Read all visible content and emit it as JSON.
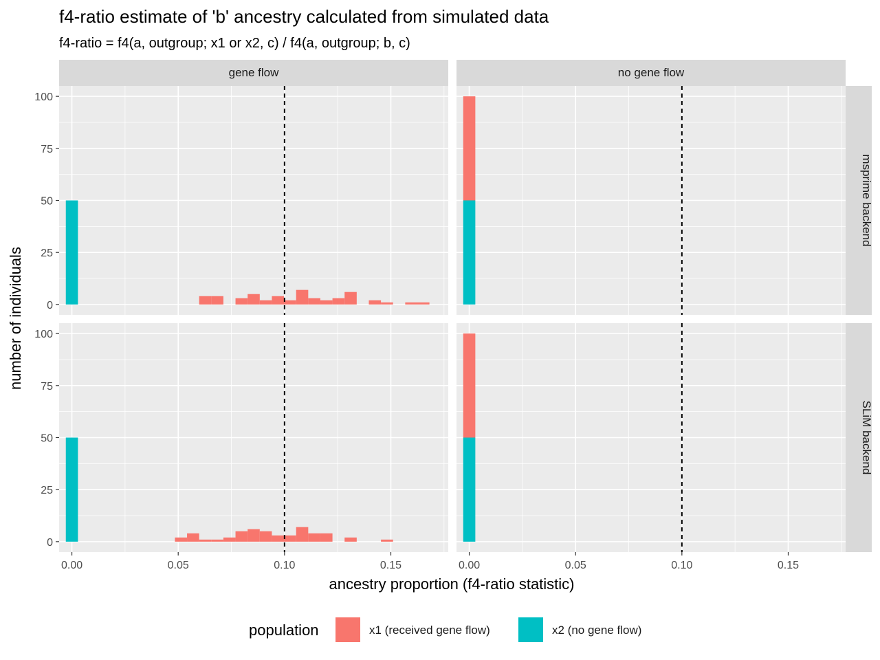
{
  "chart_data": {
    "type": "bar",
    "title": "f4-ratio estimate of 'b' ancestry calculated from simulated data",
    "subtitle": "f4-ratio = f4(a, outgroup; x1 or x2, c) / f4(a, outgroup; b, c)",
    "xlabel": "ancestry proportion (f4-ratio statistic)",
    "ylabel": "number of individuals",
    "xlim": [
      -0.006,
      0.177
    ],
    "ylim": [
      -5,
      105
    ],
    "x_ticks": [
      "0.00",
      "0.05",
      "0.10",
      "0.15"
    ],
    "x_tick_values": [
      0,
      0.05,
      0.1,
      0.15
    ],
    "y_ticks": [
      "0",
      "25",
      "50",
      "75",
      "100"
    ],
    "y_tick_values": [
      0,
      25,
      50,
      75,
      100
    ],
    "stacked": true,
    "bin_width": 0.0057,
    "reference_line": {
      "x": 0.1,
      "style": "dashed",
      "color": "#000000"
    },
    "facet_cols": [
      "gene flow",
      "no gene flow"
    ],
    "facet_rows": [
      "msprime backend",
      "SLiM backend"
    ],
    "legend": {
      "title": "population",
      "position": "bottom",
      "entries": [
        {
          "label": "x1 (received gene flow)",
          "color": "#F8766D"
        },
        {
          "label": "x2 (no gene flow)",
          "color": "#00BFC4"
        }
      ]
    },
    "series": [
      {
        "name": "x1 (received gene flow)",
        "color": "#F8766D"
      },
      {
        "name": "x2 (no gene flow)",
        "color": "#00BFC4"
      }
    ],
    "panels": [
      {
        "row": "msprime backend",
        "col": "gene flow",
        "bars": [
          {
            "x": 0.0,
            "x1": 0,
            "x2": 50
          },
          {
            "x": 0.0627,
            "x1": 4,
            "x2": 0
          },
          {
            "x": 0.0684,
            "x1": 4,
            "x2": 0
          },
          {
            "x": 0.0798,
            "x1": 3,
            "x2": 0
          },
          {
            "x": 0.0855,
            "x1": 5,
            "x2": 0
          },
          {
            "x": 0.0912,
            "x1": 2,
            "x2": 0
          },
          {
            "x": 0.0969,
            "x1": 4,
            "x2": 0
          },
          {
            "x": 0.1026,
            "x1": 2,
            "x2": 0
          },
          {
            "x": 0.1083,
            "x1": 7,
            "x2": 0
          },
          {
            "x": 0.114,
            "x1": 3,
            "x2": 0
          },
          {
            "x": 0.1197,
            "x1": 2,
            "x2": 0
          },
          {
            "x": 0.1254,
            "x1": 3,
            "x2": 0
          },
          {
            "x": 0.1311,
            "x1": 6,
            "x2": 0
          },
          {
            "x": 0.1425,
            "x1": 2,
            "x2": 0
          },
          {
            "x": 0.1482,
            "x1": 1,
            "x2": 0
          },
          {
            "x": 0.1596,
            "x1": 1,
            "x2": 0
          },
          {
            "x": 0.1653,
            "x1": 1,
            "x2": 0
          }
        ]
      },
      {
        "row": "msprime backend",
        "col": "no gene flow",
        "bars": [
          {
            "x": 0.0,
            "x1": 50,
            "x2": 50
          }
        ]
      },
      {
        "row": "SLiM backend",
        "col": "gene flow",
        "bars": [
          {
            "x": 0.0,
            "x1": 0,
            "x2": 50
          },
          {
            "x": 0.0513,
            "x1": 2,
            "x2": 0
          },
          {
            "x": 0.057,
            "x1": 4,
            "x2": 0
          },
          {
            "x": 0.0627,
            "x1": 1,
            "x2": 0
          },
          {
            "x": 0.0684,
            "x1": 1,
            "x2": 0
          },
          {
            "x": 0.0741,
            "x1": 2,
            "x2": 0
          },
          {
            "x": 0.0798,
            "x1": 5,
            "x2": 0
          },
          {
            "x": 0.0855,
            "x1": 6,
            "x2": 0
          },
          {
            "x": 0.0912,
            "x1": 5,
            "x2": 0
          },
          {
            "x": 0.0969,
            "x1": 3,
            "x2": 0
          },
          {
            "x": 0.1026,
            "x1": 3,
            "x2": 0
          },
          {
            "x": 0.1083,
            "x1": 7,
            "x2": 0
          },
          {
            "x": 0.114,
            "x1": 4,
            "x2": 0
          },
          {
            "x": 0.1197,
            "x1": 4,
            "x2": 0
          },
          {
            "x": 0.1311,
            "x1": 2,
            "x2": 0
          },
          {
            "x": 0.1482,
            "x1": 1,
            "x2": 0
          }
        ]
      },
      {
        "row": "SLiM backend",
        "col": "no gene flow",
        "bars": [
          {
            "x": 0.0,
            "x1": 50,
            "x2": 50
          }
        ]
      }
    ]
  }
}
